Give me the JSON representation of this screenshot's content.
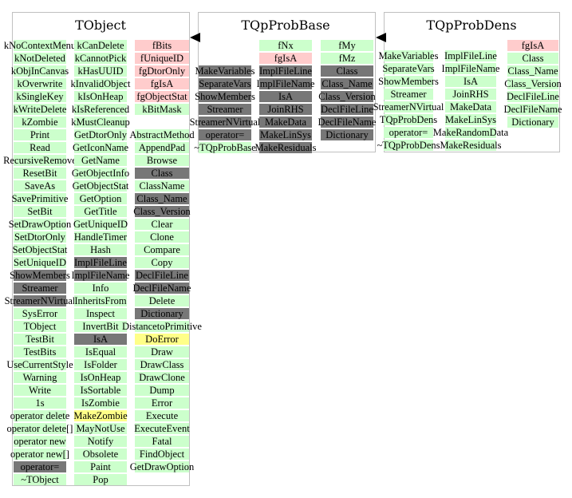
{
  "classes": [
    {
      "name": "TObject",
      "columns": [
        [
          {
            "text": "kNoContextMenu",
            "kind": "g"
          },
          {
            "text": "kNotDeleted",
            "kind": "g"
          },
          {
            "text": "kObjInCanvas",
            "kind": "g"
          },
          {
            "text": "kOverwrite",
            "kind": "g"
          },
          {
            "text": "kSingleKey",
            "kind": "g"
          },
          {
            "text": "kWriteDelete",
            "kind": "g"
          },
          {
            "text": "kZombie",
            "kind": "g"
          },
          {
            "text": "Print",
            "kind": "g"
          },
          {
            "text": "Read",
            "kind": "g"
          },
          {
            "text": "RecursiveRemove",
            "kind": "g"
          },
          {
            "text": "ResetBit",
            "kind": "g"
          },
          {
            "text": "SaveAs",
            "kind": "g"
          },
          {
            "text": "SavePrimitive",
            "kind": "g"
          },
          {
            "text": "SetBit",
            "kind": "g"
          },
          {
            "text": "SetDrawOption",
            "kind": "g"
          },
          {
            "text": "SetDtorOnly",
            "kind": "g"
          },
          {
            "text": "SetObjectStat",
            "kind": "g"
          },
          {
            "text": "SetUniqueID",
            "kind": "g"
          },
          {
            "text": "ShowMembers",
            "kind": "d"
          },
          {
            "text": "Streamer",
            "kind": "d"
          },
          {
            "text": "StreamerNVirtual",
            "kind": "d"
          },
          {
            "text": "SysError",
            "kind": "g"
          },
          {
            "text": "TObject",
            "kind": "g"
          },
          {
            "text": "TestBit",
            "kind": "g"
          },
          {
            "text": "TestBits",
            "kind": "g"
          },
          {
            "text": "UseCurrentStyle",
            "kind": "g"
          },
          {
            "text": "Warning",
            "kind": "g"
          },
          {
            "text": "Write",
            "kind": "g"
          },
          {
            "text": "1s",
            "kind": "g"
          },
          {
            "text": "operator delete",
            "kind": "g"
          },
          {
            "text": "operator delete[]",
            "kind": "g"
          },
          {
            "text": "operator new",
            "kind": "g"
          },
          {
            "text": "operator new[]",
            "kind": "g"
          },
          {
            "text": "operator=",
            "kind": "d"
          },
          {
            "text": "~TObject",
            "kind": "g"
          }
        ],
        [
          {
            "text": "kCanDelete",
            "kind": "g"
          },
          {
            "text": "kCannotPick",
            "kind": "g"
          },
          {
            "text": "kHasUUID",
            "kind": "g"
          },
          {
            "text": "kInvalidObject",
            "kind": "g"
          },
          {
            "text": "kIsOnHeap",
            "kind": "g"
          },
          {
            "text": "kIsReferenced",
            "kind": "g"
          },
          {
            "text": "kMustCleanup",
            "kind": "g"
          },
          {
            "text": "GetDtorOnly",
            "kind": "g"
          },
          {
            "text": "GetIconName",
            "kind": "g"
          },
          {
            "text": "GetName",
            "kind": "g"
          },
          {
            "text": "GetObjectInfo",
            "kind": "g"
          },
          {
            "text": "GetObjectStat",
            "kind": "g"
          },
          {
            "text": "GetOption",
            "kind": "g"
          },
          {
            "text": "GetTitle",
            "kind": "g"
          },
          {
            "text": "GetUniqueID",
            "kind": "g"
          },
          {
            "text": "HandleTimer",
            "kind": "g"
          },
          {
            "text": "Hash",
            "kind": "g"
          },
          {
            "text": "ImplFileLine",
            "kind": "d"
          },
          {
            "text": "ImplFileName",
            "kind": "d"
          },
          {
            "text": "Info",
            "kind": "g"
          },
          {
            "text": "InheritsFrom",
            "kind": "g"
          },
          {
            "text": "Inspect",
            "kind": "g"
          },
          {
            "text": "InvertBit",
            "kind": "g"
          },
          {
            "text": "IsA",
            "kind": "d"
          },
          {
            "text": "IsEqual",
            "kind": "g"
          },
          {
            "text": "IsFolder",
            "kind": "g"
          },
          {
            "text": "IsOnHeap",
            "kind": "g"
          },
          {
            "text": "IsSortable",
            "kind": "g"
          },
          {
            "text": "IsZombie",
            "kind": "g"
          },
          {
            "text": "MakeZombie",
            "kind": "y"
          },
          {
            "text": "MayNotUse",
            "kind": "g"
          },
          {
            "text": "Notify",
            "kind": "g"
          },
          {
            "text": "Obsolete",
            "kind": "g"
          },
          {
            "text": "Paint",
            "kind": "g"
          },
          {
            "text": "Pop",
            "kind": "g"
          }
        ],
        [
          {
            "text": "fBits",
            "kind": "p"
          },
          {
            "text": "fUniqueID",
            "kind": "p"
          },
          {
            "text": "fgDtorOnly",
            "kind": "p"
          },
          {
            "text": "fgIsA",
            "kind": "p"
          },
          {
            "text": "fgObjectStat",
            "kind": "p"
          },
          {
            "text": "kBitMask",
            "kind": "g"
          },
          {
            "text": "",
            "kind": "gap"
          },
          {
            "text": "AbstractMethod",
            "kind": "g"
          },
          {
            "text": "AppendPad",
            "kind": "g"
          },
          {
            "text": "Browse",
            "kind": "g"
          },
          {
            "text": "Class",
            "kind": "d"
          },
          {
            "text": "ClassName",
            "kind": "g"
          },
          {
            "text": "Class_Name",
            "kind": "d"
          },
          {
            "text": "Class_Version",
            "kind": "d"
          },
          {
            "text": "Clear",
            "kind": "g"
          },
          {
            "text": "Clone",
            "kind": "g"
          },
          {
            "text": "Compare",
            "kind": "g"
          },
          {
            "text": "Copy",
            "kind": "g"
          },
          {
            "text": "DeclFileLine",
            "kind": "d"
          },
          {
            "text": "DeclFileName",
            "kind": "d"
          },
          {
            "text": "Delete",
            "kind": "g"
          },
          {
            "text": "Dictionary",
            "kind": "d"
          },
          {
            "text": "DistancetoPrimitive",
            "kind": "g"
          },
          {
            "text": "DoError",
            "kind": "y"
          },
          {
            "text": "Draw",
            "kind": "g"
          },
          {
            "text": "DrawClass",
            "kind": "g"
          },
          {
            "text": "DrawClone",
            "kind": "g"
          },
          {
            "text": "Dump",
            "kind": "g"
          },
          {
            "text": "Error",
            "kind": "g"
          },
          {
            "text": "Execute",
            "kind": "g"
          },
          {
            "text": "ExecuteEvent",
            "kind": "g"
          },
          {
            "text": "Fatal",
            "kind": "g"
          },
          {
            "text": "FindObject",
            "kind": "g"
          },
          {
            "text": "GetDrawOption",
            "kind": "g"
          }
        ]
      ]
    },
    {
      "name": "TQpProbBase",
      "columns": [
        [
          {
            "text": "",
            "kind": "gap"
          },
          {
            "text": "",
            "kind": "gap"
          },
          {
            "text": "MakeVariables",
            "kind": "d"
          },
          {
            "text": "SeparateVars",
            "kind": "d"
          },
          {
            "text": "ShowMembers",
            "kind": "d"
          },
          {
            "text": "Streamer",
            "kind": "d"
          },
          {
            "text": "StreamerNVirtual",
            "kind": "d"
          },
          {
            "text": "operator=",
            "kind": "d"
          },
          {
            "text": "~TQpProbBase",
            "kind": "g"
          }
        ],
        [
          {
            "text": "fNx",
            "kind": "g"
          },
          {
            "text": "fgIsA",
            "kind": "p"
          },
          {
            "text": "ImplFileLine",
            "kind": "d"
          },
          {
            "text": "ImplFileName",
            "kind": "d"
          },
          {
            "text": "IsA",
            "kind": "d"
          },
          {
            "text": "JoinRHS",
            "kind": "d"
          },
          {
            "text": "MakeData",
            "kind": "d"
          },
          {
            "text": "MakeLinSys",
            "kind": "d"
          },
          {
            "text": "MakeResiduals",
            "kind": "d"
          }
        ],
        [
          {
            "text": "fMy",
            "kind": "g"
          },
          {
            "text": "fMz",
            "kind": "g"
          },
          {
            "text": "Class",
            "kind": "d"
          },
          {
            "text": "Class_Name",
            "kind": "d"
          },
          {
            "text": "Class_Version",
            "kind": "d"
          },
          {
            "text": "DeclFileLine",
            "kind": "d"
          },
          {
            "text": "DeclFileName",
            "kind": "d"
          },
          {
            "text": "Dictionary",
            "kind": "d"
          }
        ]
      ]
    },
    {
      "name": "TQpProbDens",
      "columns": [
        [
          {
            "text": "MakeVariables",
            "kind": "g"
          },
          {
            "text": "SeparateVars",
            "kind": "g"
          },
          {
            "text": "ShowMembers",
            "kind": "g"
          },
          {
            "text": "Streamer",
            "kind": "g"
          },
          {
            "text": "StreamerNVirtual",
            "kind": "g"
          },
          {
            "text": "TQpProbDens",
            "kind": "g"
          },
          {
            "text": "operator=",
            "kind": "g"
          },
          {
            "text": "~TQpProbDens",
            "kind": "g"
          }
        ],
        [
          {
            "text": "ImplFileLine",
            "kind": "g"
          },
          {
            "text": "ImplFileName",
            "kind": "g"
          },
          {
            "text": "IsA",
            "kind": "g"
          },
          {
            "text": "JoinRHS",
            "kind": "g"
          },
          {
            "text": "MakeData",
            "kind": "g"
          },
          {
            "text": "MakeLinSys",
            "kind": "g"
          },
          {
            "text": "MakeRandomData",
            "kind": "g"
          },
          {
            "text": "MakeResiduals",
            "kind": "g"
          }
        ],
        [
          {
            "text": "fgIsA",
            "kind": "p"
          },
          {
            "text": "Class",
            "kind": "g"
          },
          {
            "text": "Class_Name",
            "kind": "g"
          },
          {
            "text": "Class_Version",
            "kind": "g"
          },
          {
            "text": "DeclFileLine",
            "kind": "g"
          },
          {
            "text": "DeclFileName",
            "kind": "g"
          },
          {
            "text": "Dictionary",
            "kind": "g"
          }
        ]
      ]
    }
  ],
  "inheritance": [
    {
      "from": "TQpProbBase",
      "to": "TObject"
    },
    {
      "from": "TQpProbDens",
      "to": "TQpProbBase"
    }
  ],
  "colors": {
    "g": "#ccffcc",
    "d": "#777777",
    "p": "#ffcccc",
    "y": "#ffff88",
    "frame": "#c0c0c0",
    "arrow": "#000000"
  }
}
